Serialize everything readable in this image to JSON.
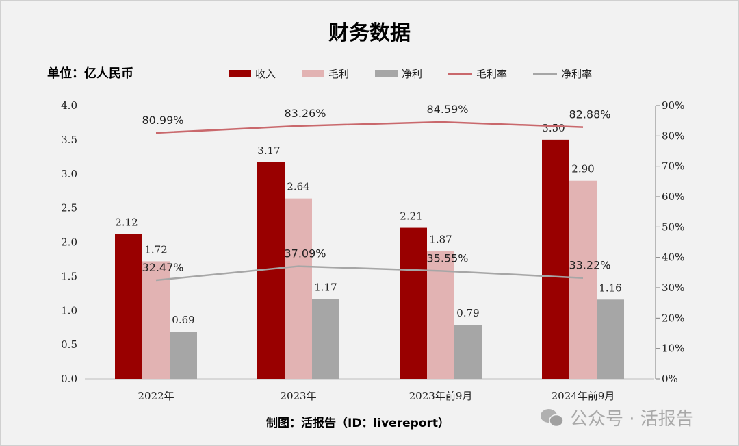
{
  "chart_data": {
    "type": "bar",
    "title": "财务数据",
    "unit_label": "单位：亿人民币",
    "categories": [
      "2022年",
      "2023年",
      "2023年前9月",
      "2024年前9月"
    ],
    "series": [
      {
        "name": "收入",
        "type": "bar",
        "axis": "left",
        "color": "#990000",
        "values": [
          2.12,
          3.17,
          2.21,
          3.5
        ],
        "labels": [
          "2.12",
          "3.17",
          "2.21",
          "3.50"
        ]
      },
      {
        "name": "毛利",
        "type": "bar",
        "axis": "left",
        "color": "#e2b3b3",
        "values": [
          1.72,
          2.64,
          1.87,
          2.9
        ],
        "labels": [
          "1.72",
          "2.64",
          "1.87",
          "2.90"
        ]
      },
      {
        "name": "净利",
        "type": "bar",
        "axis": "left",
        "color": "#a6a6a6",
        "values": [
          0.69,
          1.17,
          0.79,
          1.16
        ],
        "labels": [
          "0.69",
          "1.17",
          "0.79",
          "1.16"
        ]
      },
      {
        "name": "毛利率",
        "type": "line",
        "axis": "right",
        "color": "#c9686c",
        "values": [
          80.99,
          83.26,
          84.59,
          82.88
        ],
        "labels": [
          "80.99%",
          "83.26%",
          "84.59%",
          "82.88%"
        ]
      },
      {
        "name": "净利率",
        "type": "line",
        "axis": "right",
        "color": "#a6a6a6",
        "values": [
          32.47,
          37.09,
          35.55,
          33.22
        ],
        "labels": [
          "32.47%",
          "37.09%",
          "35.55%",
          "33.22%"
        ]
      }
    ],
    "y_left": {
      "range": [
        0,
        4.0
      ],
      "ticks": [
        "0.0",
        "0.5",
        "1.0",
        "1.5",
        "2.0",
        "2.5",
        "3.0",
        "3.5",
        "4.0"
      ]
    },
    "y_right": {
      "range": [
        0,
        90
      ],
      "ticks": [
        "0%",
        "10%",
        "20%",
        "30%",
        "40%",
        "50%",
        "60%",
        "70%",
        "80%",
        "90%"
      ]
    },
    "grid": false,
    "legend_position": "top"
  },
  "footer": "制图：活报告（ID：livereport）",
  "watermark": "公众号 · 活报告"
}
